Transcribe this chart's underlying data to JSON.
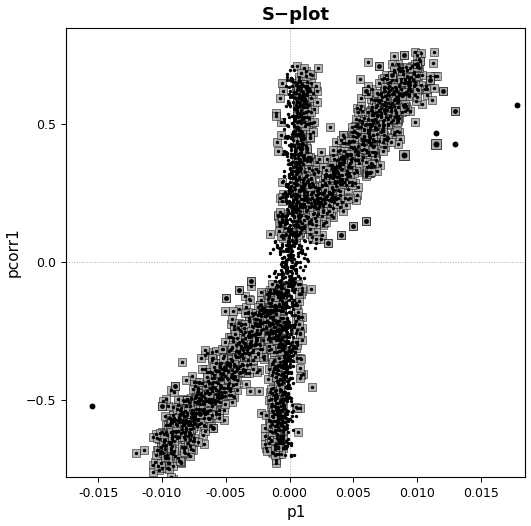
{
  "title": "S−plot",
  "xlabel": "p1",
  "ylabel": "pcorr1",
  "xlim": [
    -0.0175,
    0.0185
  ],
  "ylim": [
    -0.78,
    0.85
  ],
  "xticks": [
    -0.015,
    -0.01,
    -0.005,
    0.0,
    0.005,
    0.01,
    0.015
  ],
  "yticks": [
    -0.5,
    0.0,
    0.5
  ],
  "background_color": "#ffffff",
  "border_color": "#000000",
  "ref_line_color": "#aaaaaa",
  "dot_color": "#000000",
  "square_facecolor": "#aaaaaa",
  "square_edgecolor": "#000000",
  "figsize": [
    5.31,
    5.26
  ],
  "dpi": 100,
  "title_fontsize": 13,
  "axis_label_fontsize": 11,
  "tick_fontsize": 9,
  "seed": 42
}
